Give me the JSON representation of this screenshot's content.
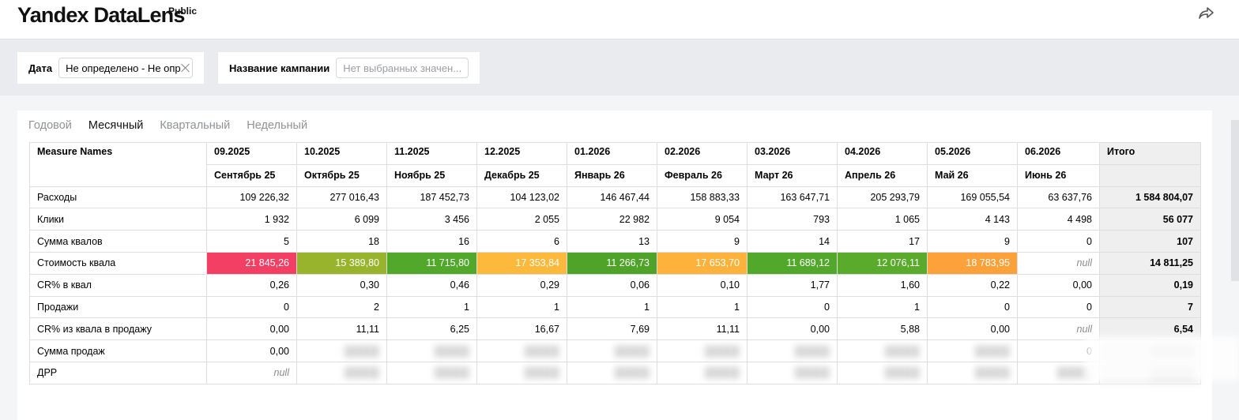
{
  "header": {
    "logo": "Yandex DataLens",
    "badge": "Public"
  },
  "filters": {
    "date_label": "Дата",
    "date_value": "Не определено - Не опр",
    "campaign_label": "Название кампании",
    "campaign_placeholder": "Нет выбранных значен..."
  },
  "tabs": [
    {
      "label": "Годовой",
      "active": false
    },
    {
      "label": "Месячный",
      "active": true
    },
    {
      "label": "Квартальный",
      "active": false
    },
    {
      "label": "Недельный",
      "active": false
    }
  ],
  "table": {
    "corner": "Measure Names",
    "months": [
      "09.2025",
      "10.2025",
      "11.2025",
      "12.2025",
      "01.2026",
      "02.2026",
      "03.2026",
      "04.2026",
      "05.2026",
      "06.2026"
    ],
    "month_names": [
      "Сентябрь 25",
      "Октябрь 25",
      "Ноябрь 25",
      "Декабрь 25",
      "Январь 26",
      "Февраль 26",
      "Март 26",
      "Апрель 26",
      "Май 26",
      "Июнь 26"
    ],
    "total_header": "Итого",
    "rows": [
      {
        "name": "Расходы",
        "values": [
          "109 226,32",
          "277 016,43",
          "187 452,73",
          "104 123,02",
          "146 467,44",
          "158 883,33",
          "163 647,71",
          "205 293,79",
          "169 055,54",
          "63 637,76"
        ],
        "total": "1 584 804,07"
      },
      {
        "name": "Клики",
        "values": [
          "1 932",
          "6 099",
          "3 456",
          "2 055",
          "22 982",
          "9 054",
          "793",
          "1 065",
          "4 143",
          "4 498"
        ],
        "total": "56 077"
      },
      {
        "name": "Сумма квалов",
        "values": [
          "5",
          "18",
          "16",
          "6",
          "13",
          "9",
          "14",
          "17",
          "9",
          "0"
        ],
        "total": "107"
      },
      {
        "name": "Стоимость квала",
        "values": [
          "21 845,26",
          "15 389,80",
          "11 715,80",
          "17 353,84",
          "11 266,73",
          "17 653,70",
          "11 689,12",
          "12 076,11",
          "18 783,95",
          "null"
        ],
        "total": "14 811,25",
        "colors": [
          "#f43f65",
          "#98b32c",
          "#52a82a",
          "#fdb93c",
          "#4ea328",
          "#fdb23b",
          "#52a82a",
          "#5aab2c",
          "#fda23a",
          ""
        ]
      },
      {
        "name": "CR% в квал",
        "values": [
          "0,26",
          "0,30",
          "0,46",
          "0,29",
          "0,06",
          "0,10",
          "1,77",
          "1,60",
          "0,22",
          "0,00"
        ],
        "total": "0,19"
      },
      {
        "name": "Продажи",
        "values": [
          "0",
          "2",
          "1",
          "1",
          "1",
          "1",
          "0",
          "1",
          "0",
          "0"
        ],
        "total": "7"
      },
      {
        "name": "CR% из квала в продажу",
        "values": [
          "0,00",
          "11,11",
          "6,25",
          "16,67",
          "7,69",
          "11,11",
          "0,00",
          "5,88",
          "0,00",
          "null"
        ],
        "total": "6,54"
      },
      {
        "name": "Сумма продаж",
        "values": [
          "0,00",
          "",
          "",
          "",
          "",
          "",
          "",
          "",
          "",
          "0"
        ],
        "total": ""
      },
      {
        "name": "ДРР",
        "values": [
          "null",
          "",
          "",
          "",
          "",
          "",
          "",
          "",
          "",
          ""
        ],
        "total": ""
      }
    ]
  }
}
